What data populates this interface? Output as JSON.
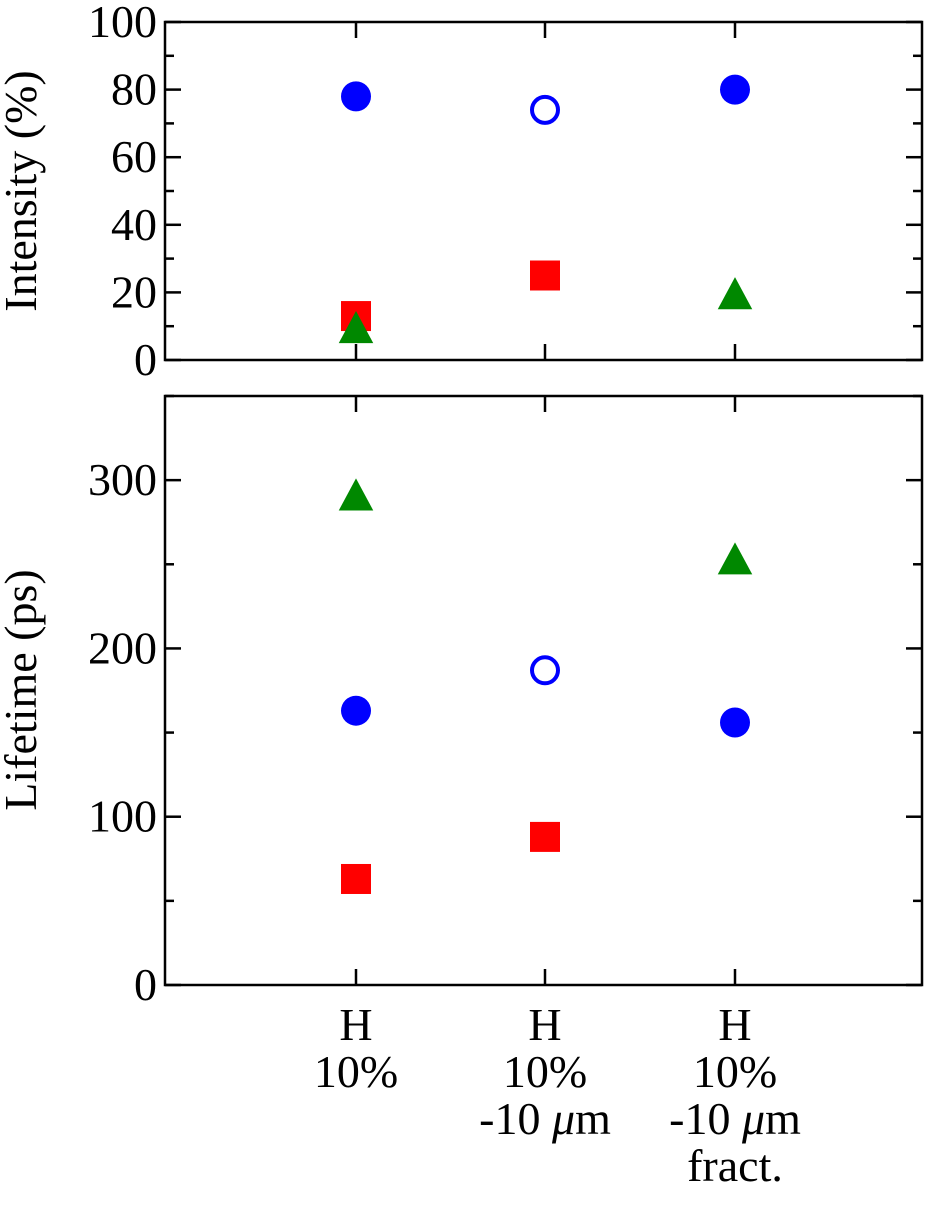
{
  "chart_data": [
    {
      "type": "scatter",
      "panel": "top",
      "ylabel": "Intensity (%)",
      "ylim": [
        0,
        100
      ],
      "yticks": [
        "0",
        "20",
        "40",
        "60",
        "80",
        "100"
      ],
      "categories": [
        [
          "H",
          "10%"
        ],
        [
          "H",
          "10%",
          "-10 μm"
        ],
        [
          "H",
          "10%",
          "-10 μm",
          "fract."
        ]
      ],
      "series": [
        {
          "marker": "circle",
          "color": "#0000ff",
          "values": [
            78,
            74,
            80
          ],
          "filled": [
            true,
            false,
            true
          ]
        },
        {
          "marker": "square",
          "color": "#ff0000",
          "values": [
            13,
            25,
            null
          ],
          "filled": [
            true,
            true,
            true
          ]
        },
        {
          "marker": "triangle",
          "color": "#008800",
          "values": [
            9,
            null,
            19
          ],
          "filled": [
            true,
            true,
            true
          ]
        }
      ],
      "grid": false
    },
    {
      "type": "scatter",
      "panel": "bottom",
      "ylabel": "Lifetime (ps)",
      "ylim": [
        0,
        350
      ],
      "yticks": [
        "0",
        "100",
        "200",
        "300"
      ],
      "categories": [
        [
          "H",
          "10%"
        ],
        [
          "H",
          "10%",
          "-10 μm"
        ],
        [
          "H",
          "10%",
          "-10 μm",
          "fract."
        ]
      ],
      "series": [
        {
          "marker": "circle",
          "color": "#0000ff",
          "values": [
            163,
            187,
            156
          ],
          "filled": [
            true,
            false,
            true
          ]
        },
        {
          "marker": "square",
          "color": "#ff0000",
          "values": [
            63,
            88,
            null
          ],
          "filled": [
            true,
            true,
            true
          ]
        },
        {
          "marker": "triangle",
          "color": "#008800",
          "values": [
            290,
            null,
            252
          ],
          "filled": [
            true,
            true,
            true
          ]
        }
      ],
      "grid": false
    }
  ]
}
